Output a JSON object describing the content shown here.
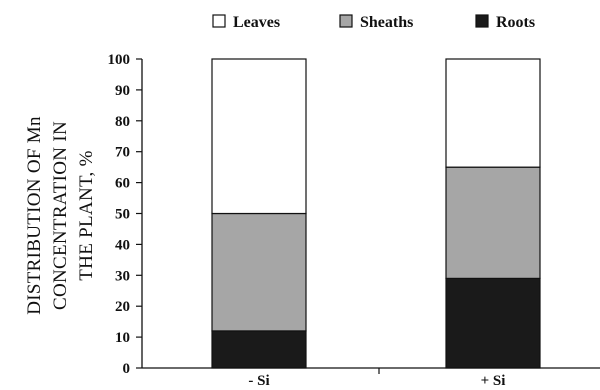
{
  "chart_data": {
    "type": "bar",
    "stacked": true,
    "categories": [
      "- Si",
      "+ Si"
    ],
    "series": [
      {
        "name": "Roots",
        "values": [
          12,
          29
        ],
        "color": "#1a1a1a"
      },
      {
        "name": "Sheaths",
        "values": [
          38,
          36
        ],
        "color": "#a6a6a6"
      },
      {
        "name": "Leaves",
        "values": [
          50,
          35
        ],
        "color": "#ffffff"
      }
    ],
    "legend_order": [
      "Leaves",
      "Sheaths",
      "Roots"
    ],
    "legend_position": "top",
    "ylabel_lines": [
      "DISTRIBUTION OF Mn",
      "CONCENTRATION IN",
      "THE PLANT, %"
    ],
    "xlabel": "",
    "ylim": [
      0,
      100
    ],
    "yticks": [
      0,
      10,
      20,
      30,
      40,
      50,
      60,
      70,
      80,
      90,
      100
    ],
    "grid": false
  }
}
